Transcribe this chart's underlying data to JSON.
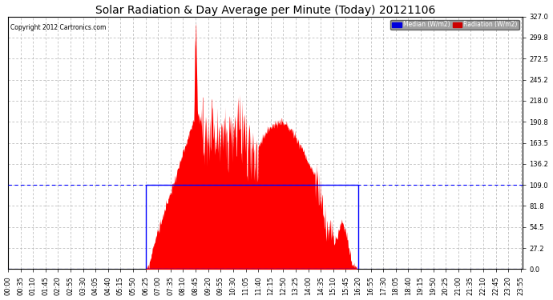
{
  "title": "Solar Radiation & Day Average per Minute (Today) 20121106",
  "copyright": "Copyright 2012 Cartronics.com",
  "y_ticks": [
    0.0,
    27.2,
    54.5,
    81.8,
    109.0,
    136.2,
    163.5,
    190.8,
    218.0,
    245.2,
    272.5,
    299.8,
    327.0
  ],
  "ylim": [
    0,
    327.0
  ],
  "plot_bg_color": "#ffffff",
  "radiation_color": "#ff0000",
  "median_color": "#0000ff",
  "median_value": 109.0,
  "sunrise_min": 385,
  "sunset_min": 980,
  "grid_color": "#b0b0b0",
  "title_fontsize": 10,
  "tick_fontsize": 6,
  "legend_blue": "#0000dd",
  "legend_red": "#cc0000"
}
